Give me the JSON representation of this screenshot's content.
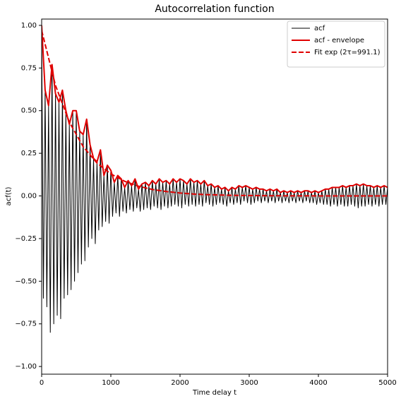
{
  "chart_data": {
    "type": "line",
    "title": "Autocorrelation function",
    "x_label": "Time delay t",
    "y_label": "acf(t)",
    "xlim": [
      0,
      5000
    ],
    "ylim": [
      -1.045,
      1.037
    ],
    "xticks": [
      0,
      1000,
      2000,
      3000,
      4000,
      5000
    ],
    "yticks": [
      {
        "value": -1,
        "label": "−1.00"
      },
      {
        "value": -0.75,
        "label": "−0.75"
      },
      {
        "value": -0.5,
        "label": "−0.50"
      },
      {
        "value": -0.25,
        "label": "−0.25"
      },
      {
        "value": 0,
        "label": "0.00"
      },
      {
        "value": 0.25,
        "label": "0.25"
      },
      {
        "value": 0.5,
        "label": "0.50"
      },
      {
        "value": 0.75,
        "label": "0.75"
      },
      {
        "value": 1,
        "label": "1.00"
      }
    ],
    "legend": "upper right",
    "series": [
      {
        "name": "acf",
        "color": "#000000",
        "linewidth": 1,
        "linestyle": "solid",
        "x": [
          0,
          25,
          50,
          75,
          100,
          125,
          150,
          175,
          200,
          225,
          250,
          275,
          300,
          325,
          350,
          375,
          400,
          425,
          450,
          475,
          500,
          525,
          550,
          575,
          600,
          625,
          650,
          675,
          700,
          725,
          750,
          775,
          800,
          825,
          850,
          875,
          900,
          925,
          950,
          975,
          1000,
          1025,
          1050,
          1075,
          1100,
          1125,
          1150,
          1175,
          1200,
          1225,
          1250,
          1275,
          1300,
          1325,
          1350,
          1375,
          1400,
          1425,
          1450,
          1475,
          1500,
          1525,
          1550,
          1575,
          1600,
          1625,
          1650,
          1675,
          1700,
          1725,
          1750,
          1775,
          1800,
          1825,
          1850,
          1875,
          1900,
          1925,
          1950,
          1975,
          2000,
          2025,
          2050,
          2075,
          2100,
          2125,
          2150,
          2175,
          2200,
          2225,
          2250,
          2275,
          2300,
          2325,
          2350,
          2375,
          2400,
          2425,
          2450,
          2475,
          2500,
          2525,
          2550,
          2575,
          2600,
          2625,
          2650,
          2675,
          2700,
          2725,
          2750,
          2775,
          2800,
          2825,
          2850,
          2875,
          2900,
          2925,
          2950,
          2975,
          3000,
          3025,
          3050,
          3075,
          3100,
          3125,
          3150,
          3175,
          3200,
          3225,
          3250,
          3275,
          3300,
          3325,
          3350,
          3375,
          3400,
          3425,
          3450,
          3475,
          3500,
          3525,
          3550,
          3575,
          3600,
          3625,
          3650,
          3675,
          3700,
          3725,
          3750,
          3775,
          3800,
          3825,
          3850,
          3875,
          3900,
          3925,
          3950,
          3975,
          4000,
          4025,
          4050,
          4075,
          4100,
          4125,
          4150,
          4175,
          4200,
          4225,
          4250,
          4275,
          4300,
          4325,
          4350,
          4375,
          4400,
          4425,
          4450,
          4475,
          4500,
          4525,
          4550,
          4575,
          4600,
          4625,
          4650,
          4675,
          4700,
          4725,
          4750,
          4775,
          4800,
          4825,
          4850,
          4875,
          4900,
          4925,
          4950,
          4975,
          5000
        ],
        "values": [
          1.0,
          -0.6,
          0.62,
          -0.65,
          0.53,
          -0.8,
          0.77,
          -0.75,
          0.6,
          -0.7,
          0.55,
          -0.72,
          0.62,
          -0.6,
          0.5,
          -0.58,
          0.42,
          -0.55,
          0.5,
          -0.5,
          0.5,
          -0.45,
          0.38,
          -0.4,
          0.36,
          -0.38,
          0.45,
          -0.3,
          0.3,
          -0.25,
          0.22,
          -0.28,
          0.2,
          -0.2,
          0.27,
          -0.18,
          0.12,
          -0.15,
          0.18,
          -0.16,
          0.15,
          -0.12,
          0.08,
          -0.1,
          0.12,
          -0.12,
          0.1,
          -0.09,
          0.05,
          -0.1,
          0.09,
          -0.08,
          0.06,
          -0.09,
          0.1,
          -0.07,
          0.04,
          -0.09,
          0.07,
          -0.08,
          0.08,
          -0.07,
          0.06,
          -0.08,
          0.09,
          -0.06,
          0.07,
          -0.07,
          0.1,
          -0.08,
          0.08,
          -0.06,
          0.09,
          -0.07,
          0.07,
          -0.06,
          0.1,
          -0.05,
          0.08,
          -0.06,
          0.1,
          -0.07,
          0.09,
          -0.05,
          0.07,
          -0.06,
          0.1,
          -0.05,
          0.08,
          -0.06,
          0.09,
          -0.05,
          0.07,
          -0.06,
          0.09,
          -0.04,
          0.06,
          -0.05,
          0.07,
          -0.06,
          0.05,
          -0.05,
          0.06,
          -0.04,
          0.04,
          -0.05,
          0.05,
          -0.06,
          0.03,
          -0.04,
          0.05,
          -0.05,
          0.04,
          -0.04,
          0.06,
          -0.05,
          0.05,
          -0.03,
          0.06,
          -0.04,
          0.05,
          -0.05,
          0.04,
          -0.04,
          0.05,
          -0.03,
          0.04,
          -0.04,
          0.04,
          -0.03,
          0.03,
          -0.04,
          0.04,
          -0.03,
          0.03,
          -0.04,
          0.04,
          -0.03,
          0.02,
          -0.04,
          0.03,
          -0.03,
          0.02,
          -0.04,
          0.03,
          -0.03,
          0.02,
          -0.04,
          0.03,
          -0.03,
          0.02,
          -0.04,
          0.03,
          -0.03,
          0.03,
          -0.04,
          0.02,
          -0.04,
          0.03,
          -0.05,
          0.02,
          -0.04,
          0.03,
          -0.05,
          0.04,
          -0.05,
          0.04,
          -0.06,
          0.05,
          -0.05,
          0.05,
          -0.06,
          0.05,
          -0.05,
          0.06,
          -0.06,
          0.05,
          -0.06,
          0.06,
          -0.05,
          0.06,
          -0.06,
          0.07,
          -0.07,
          0.06,
          -0.06,
          0.07,
          -0.06,
          0.06,
          -0.05,
          0.06,
          -0.06,
          0.05,
          -0.05,
          0.06,
          -0.06,
          0.05,
          -0.05,
          0.06,
          -0.05,
          0.05
        ]
      },
      {
        "name": "acf - envelope",
        "color": "#e00000",
        "linewidth": 2,
        "linestyle": "solid",
        "x": [
          0,
          50,
          100,
          150,
          200,
          250,
          300,
          350,
          400,
          450,
          500,
          550,
          600,
          650,
          700,
          750,
          800,
          850,
          900,
          950,
          1000,
          1050,
          1100,
          1150,
          1200,
          1250,
          1300,
          1350,
          1400,
          1450,
          1500,
          1550,
          1600,
          1650,
          1700,
          1750,
          1800,
          1850,
          1900,
          1950,
          2000,
          2050,
          2100,
          2150,
          2200,
          2250,
          2300,
          2350,
          2400,
          2450,
          2500,
          2550,
          2600,
          2650,
          2700,
          2750,
          2800,
          2850,
          2900,
          2950,
          3000,
          3050,
          3100,
          3150,
          3200,
          3250,
          3300,
          3350,
          3400,
          3450,
          3500,
          3550,
          3600,
          3650,
          3700,
          3750,
          3800,
          3850,
          3900,
          3950,
          4000,
          4050,
          4100,
          4150,
          4200,
          4250,
          4300,
          4350,
          4400,
          4450,
          4500,
          4550,
          4600,
          4650,
          4700,
          4750,
          4800,
          4850,
          4900,
          4950,
          5000
        ],
        "values": [
          1.0,
          0.62,
          0.53,
          0.77,
          0.6,
          0.55,
          0.62,
          0.5,
          0.42,
          0.5,
          0.5,
          0.38,
          0.36,
          0.45,
          0.3,
          0.22,
          0.2,
          0.27,
          0.12,
          0.18,
          0.15,
          0.08,
          0.12,
          0.1,
          0.05,
          0.09,
          0.06,
          0.1,
          0.04,
          0.07,
          0.08,
          0.06,
          0.09,
          0.07,
          0.1,
          0.08,
          0.09,
          0.07,
          0.1,
          0.08,
          0.1,
          0.09,
          0.07,
          0.1,
          0.08,
          0.09,
          0.07,
          0.09,
          0.06,
          0.07,
          0.05,
          0.06,
          0.04,
          0.05,
          0.03,
          0.05,
          0.04,
          0.06,
          0.05,
          0.06,
          0.05,
          0.04,
          0.05,
          0.04,
          0.04,
          0.03,
          0.04,
          0.03,
          0.04,
          0.02,
          0.03,
          0.02,
          0.03,
          0.02,
          0.03,
          0.02,
          0.03,
          0.03,
          0.02,
          0.03,
          0.02,
          0.03,
          0.04,
          0.04,
          0.05,
          0.05,
          0.05,
          0.06,
          0.05,
          0.06,
          0.06,
          0.07,
          0.06,
          0.07,
          0.06,
          0.06,
          0.05,
          0.06,
          0.05,
          0.06,
          0.05
        ]
      },
      {
        "name": "Fit exp (2τ=991.1)",
        "color": "#e00000",
        "linewidth": 2,
        "linestyle": "dashed",
        "x": [
          0,
          200,
          400,
          600,
          800,
          1000,
          1200,
          1400,
          1600,
          1800,
          2000,
          2200,
          2400,
          2600,
          2800,
          3000,
          3200,
          3400,
          3600,
          3800,
          4000,
          4200,
          4400,
          4600,
          4800,
          5000
        ],
        "values": [
          0.97,
          0.648,
          0.433,
          0.289,
          0.193,
          0.129,
          0.086,
          0.057,
          0.038,
          0.026,
          0.017,
          0.011,
          0.0076,
          0.0051,
          0.0034,
          0.0023,
          0.0015,
          0.001,
          0.0007,
          0.0005,
          0.0003,
          0.0002,
          0.0001,
          0.0001,
          0.0001,
          0
        ]
      }
    ]
  }
}
